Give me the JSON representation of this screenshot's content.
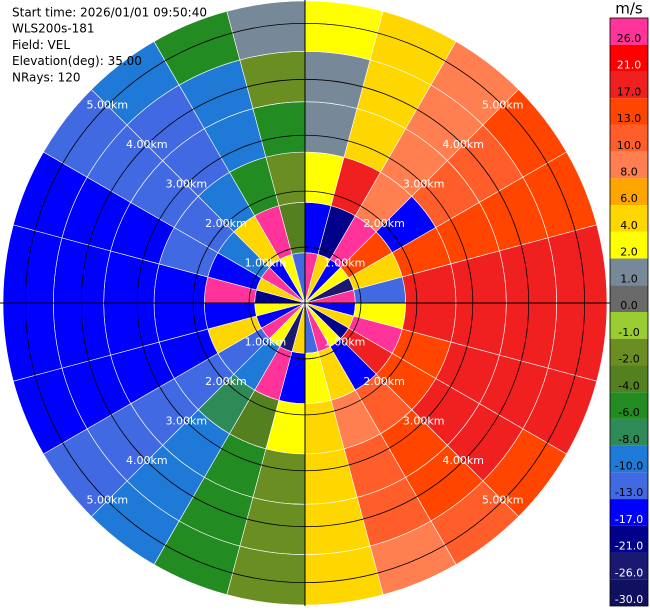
{
  "chart_data": {
    "type": "ppi",
    "info": [
      "Start time: 2026/01/01 09:50:40",
      "WLS200s-181",
      "Field: VEL",
      "Elevation(deg): 35.00",
      "NRays: 120"
    ],
    "rlim": [
      0,
      5.4
    ],
    "range_rings": [
      {
        "value": 1,
        "label": "1.00km"
      },
      {
        "value": 2,
        "label": "2.00km"
      },
      {
        "value": 3,
        "label": "3.00km"
      },
      {
        "value": 4,
        "label": "4.00km"
      },
      {
        "value": 5,
        "label": "5.00km"
      }
    ],
    "velocity": [
      [
        26,
        -17,
        2,
        1,
        1,
        2
      ],
      [
        4,
        -21,
        17,
        4,
        4,
        4
      ],
      [
        -17,
        26,
        8,
        8,
        8,
        8
      ],
      [
        2,
        13,
        -17,
        10,
        10,
        13
      ],
      [
        -26,
        4,
        13,
        13,
        13,
        13
      ],
      [
        26,
        -13,
        17,
        17,
        17,
        17
      ],
      [
        -17,
        2,
        17,
        17,
        17,
        17
      ],
      [
        4,
        26,
        13,
        17,
        17,
        17
      ],
      [
        -21,
        17,
        13,
        17,
        17,
        13
      ],
      [
        2,
        -17,
        10,
        13,
        13,
        10
      ],
      [
        26,
        4,
        8,
        10,
        10,
        8
      ],
      [
        -13,
        2,
        4,
        4,
        4,
        4
      ],
      [
        4,
        -17,
        2,
        -2,
        -2,
        -2
      ],
      [
        -26,
        26,
        -4,
        -6,
        -6,
        -6
      ],
      [
        2,
        -10,
        -8,
        -10,
        -10,
        -10
      ],
      [
        26,
        -13,
        -13,
        -13,
        -13,
        -13
      ],
      [
        -17,
        4,
        -17,
        -17,
        -17,
        -17
      ],
      [
        2,
        -17,
        -17,
        -17,
        -17,
        -17
      ],
      [
        -21,
        26,
        -17,
        -17,
        -17,
        -17
      ],
      [
        4,
        -17,
        -13,
        -17,
        -17,
        -17
      ],
      [
        26,
        -10,
        -13,
        -13,
        -13,
        -13
      ],
      [
        -17,
        4,
        -10,
        -13,
        -13,
        -10
      ],
      [
        2,
        26,
        -6,
        -10,
        -10,
        -6
      ],
      [
        -13,
        -4,
        -2,
        -6,
        -2,
        1
      ]
    ],
    "colorbar": {
      "title": "m/s",
      "ticks": [
        {
          "value": 26,
          "label": "26.0"
        },
        {
          "value": 21,
          "label": "21.0"
        },
        {
          "value": 17,
          "label": "17.0"
        },
        {
          "value": 13,
          "label": "13.0"
        },
        {
          "value": 10,
          "label": "10.0"
        },
        {
          "value": 8,
          "label": "8.0"
        },
        {
          "value": 6,
          "label": "6.0"
        },
        {
          "value": 4,
          "label": "4.0"
        },
        {
          "value": 2,
          "label": "2.0"
        },
        {
          "value": 1,
          "label": "1.0"
        },
        {
          "value": 0,
          "label": "0.0"
        },
        {
          "value": -1,
          "label": "-1.0"
        },
        {
          "value": -2,
          "label": "-2.0"
        },
        {
          "value": -4,
          "label": "-4.0"
        },
        {
          "value": -6,
          "label": "-6.0"
        },
        {
          "value": -8,
          "label": "-8.0"
        },
        {
          "value": -10,
          "label": "-10.0"
        },
        {
          "value": -13,
          "label": "-13.0"
        },
        {
          "value": -17,
          "label": "-17.0"
        },
        {
          "value": -21,
          "label": "-21.0"
        },
        {
          "value": -26,
          "label": "-26.0"
        },
        {
          "value": -30,
          "label": "-30.0"
        }
      ],
      "colors": [
        "#ff3399",
        "#ff0000",
        "#f02020",
        "#ff4500",
        "#ff5e2a",
        "#ff7f50",
        "#ffa500",
        "#ffd700",
        "#ffff00",
        "#778899",
        "#696969",
        "#9acd32",
        "#6b8e23",
        "#55801f",
        "#228b22",
        "#2e8b57",
        "#1e7ad6",
        "#4169e1",
        "#0000ff",
        "#00008b",
        "#191970",
        "#101060"
      ]
    }
  }
}
